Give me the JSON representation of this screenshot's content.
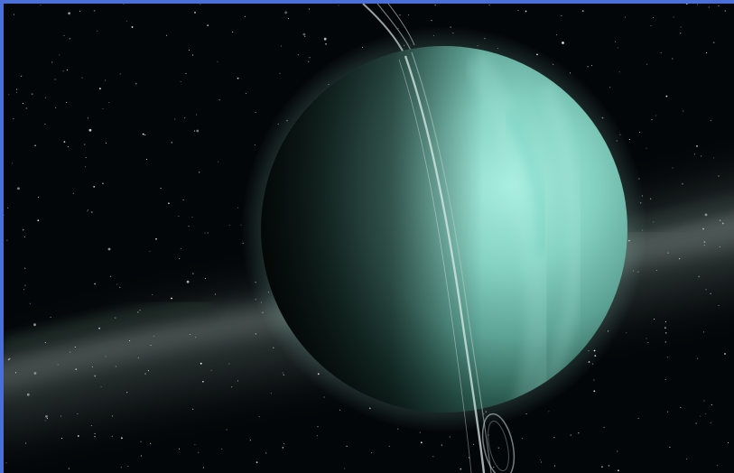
{
  "image": {
    "subject": "planet-uranus",
    "colors": {
      "frame": "#4a6fd8",
      "space": "#030608",
      "milky_way": "#7f938c",
      "planet_light": "#9ee3d6",
      "planet_mid": "#5fae9e",
      "planet_dark": "#0f2a24",
      "ring": "#c9ded8",
      "stars": "#ffffff"
    }
  }
}
